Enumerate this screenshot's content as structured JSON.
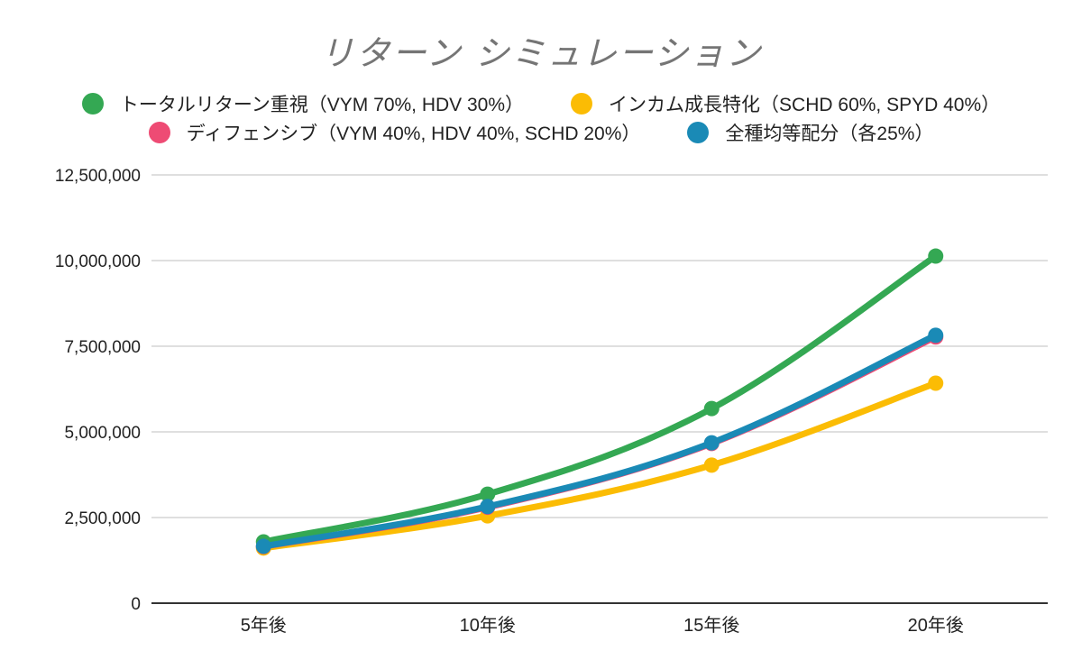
{
  "chart_data": {
    "type": "line",
    "title": "リターン シミュレーション",
    "xlabel": "",
    "ylabel": "",
    "categories": [
      "5年後",
      "10年後",
      "15年後",
      "20年後"
    ],
    "yticks": [
      "0",
      "2,500,000",
      "5,000,000",
      "7,500,000",
      "10,000,000",
      "12,500,000"
    ],
    "ytick_values": [
      0,
      2500000,
      5000000,
      7500000,
      10000000,
      12500000
    ],
    "ylim": [
      0,
      12500000
    ],
    "grid": true,
    "legend_position": "top",
    "series": [
      {
        "name": "トータルリターン重視（VYM 70%, HDV 30%）",
        "color": "#34a853",
        "values": [
          1790000,
          3180000,
          5680000,
          10130000
        ]
      },
      {
        "name": "インカム成長特化（SCHD 60%, SPYD 40%）",
        "color": "#fbbc04",
        "values": [
          1610000,
          2550000,
          4030000,
          6420000
        ]
      },
      {
        "name": "ディフェンシブ（VYM 40%, HDV 40%, SCHD 20%）",
        "color": "#ee4b74",
        "values": [
          1650000,
          2800000,
          4660000,
          7770000
        ]
      },
      {
        "name": "全種均等配分（各25%）",
        "color": "#1a8ab6",
        "values": [
          1660000,
          2820000,
          4680000,
          7820000
        ]
      }
    ]
  }
}
